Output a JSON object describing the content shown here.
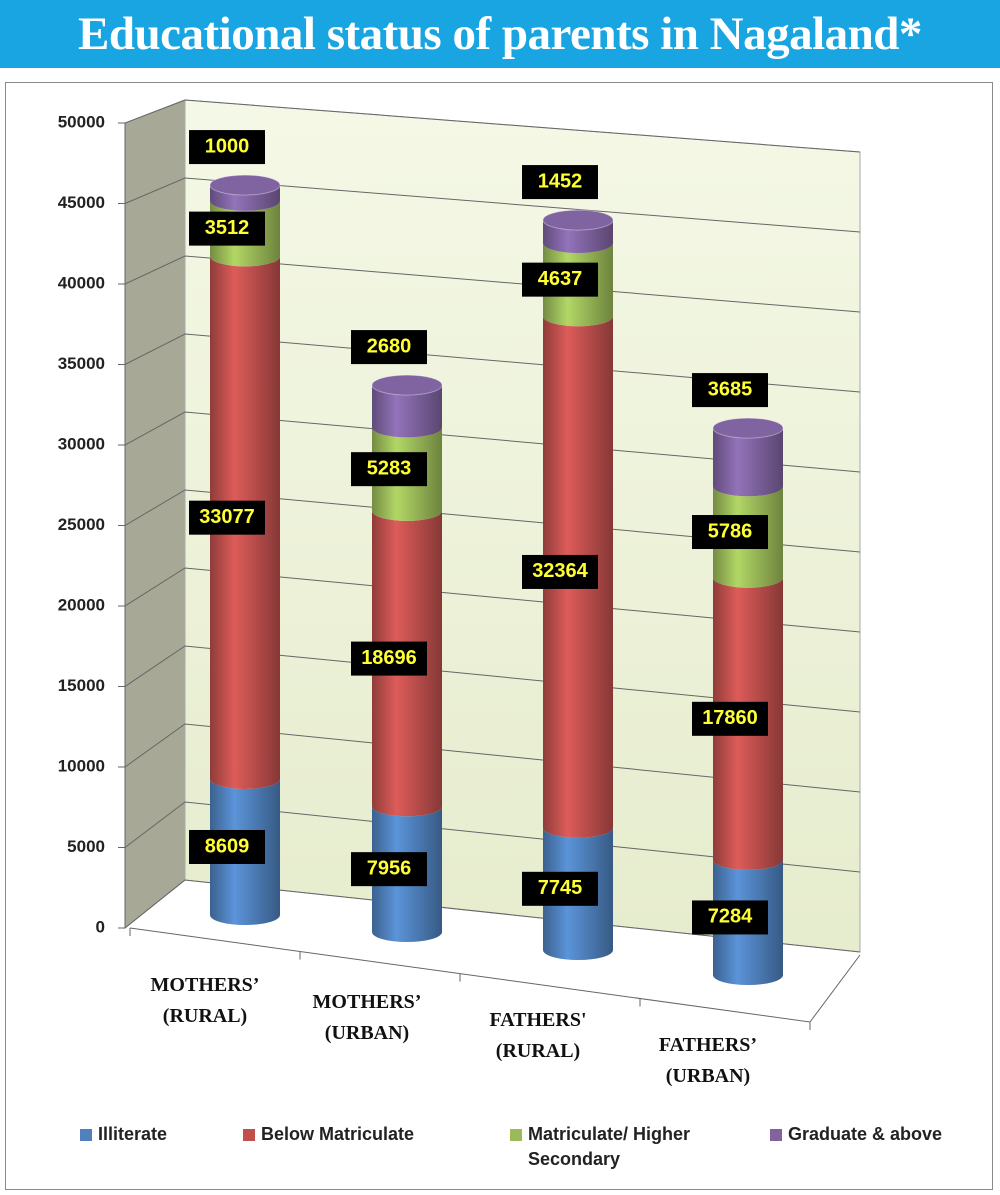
{
  "chart_data": {
    "type": "stacked-cylinder",
    "title": "Educational status of parents in Nagaland*",
    "categories": [
      "MOTHERS’ (RURAL)",
      "MOTHERS’ (URBAN)",
      "FATHERS' (RURAL)",
      "FATHERS’ (URBAN)"
    ],
    "series": [
      {
        "name": "Illiterate",
        "color": "#4f81bd",
        "values": [
          8609,
          7956,
          7745,
          7284
        ]
      },
      {
        "name": "Below Matriculate",
        "color": "#c0504d",
        "values": [
          33077,
          18696,
          32364,
          17860
        ]
      },
      {
        "name": "Matriculate/ Higher Secondary",
        "color": "#9bbb59",
        "values": [
          3512,
          5283,
          4637,
          5786
        ]
      },
      {
        "name": "Graduate & above",
        "color": "#8064a2",
        "values": [
          1000,
          2680,
          1452,
          3685
        ]
      }
    ],
    "ylim": [
      0,
      50000
    ],
    "yticks": [
      0,
      5000,
      10000,
      15000,
      20000,
      25000,
      30000,
      35000,
      40000,
      45000,
      50000
    ],
    "grid": true
  }
}
